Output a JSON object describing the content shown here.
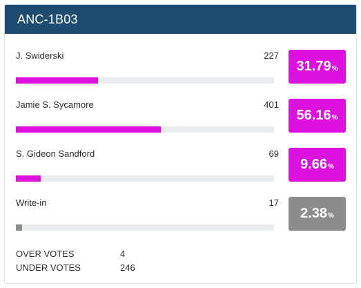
{
  "title": "ANC-1B03",
  "candidates": [
    {
      "name": "J. Swiderski",
      "votes": "227",
      "percent": "31.79",
      "share": 0.3179,
      "color": "#dd11dd"
    },
    {
      "name": "Jamie S. Sycamore",
      "votes": "401",
      "percent": "56.16",
      "share": 0.5616,
      "color": "#dd11dd"
    },
    {
      "name": "S. Gideon Sandford",
      "votes": "69",
      "percent": "9.66",
      "share": 0.0966,
      "color": "#dd11dd"
    },
    {
      "name": "Write-in",
      "votes": "17",
      "percent": "2.38",
      "share": 0.0238,
      "color": "#8c8c8c"
    }
  ],
  "percent_sign": "%",
  "summary": {
    "over_votes_label": "OVER VOTES",
    "over_votes": "4",
    "under_votes_label": "UNDER VOTES",
    "under_votes": "246"
  },
  "colors": {
    "header": "#1e4b70",
    "track": "#e8ecef",
    "winner_accent": "#dd11dd",
    "write_in_accent": "#8c8c8c"
  }
}
